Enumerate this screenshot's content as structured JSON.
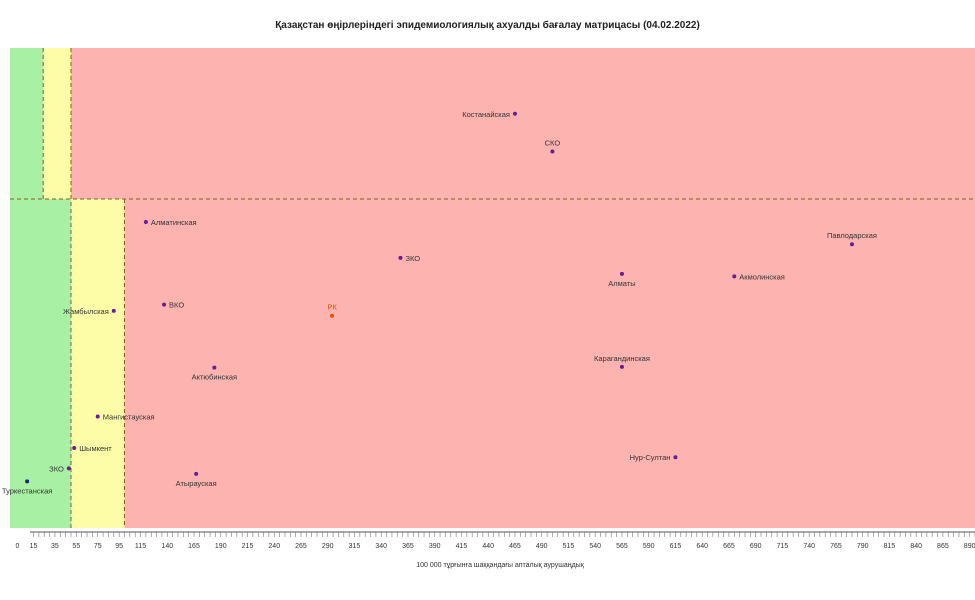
{
  "chart_data": {
    "type": "scatter",
    "title": "Қазақстан өңірлеріндегі эпидемиологиялық ахуалды бағалау матрицасы  (04.02.2022)",
    "xlabel": "100 000 тұрғынға шаққандағы апталық аурушаңдық",
    "ylabel": "",
    "xlim": [
      -7,
      895
    ],
    "x_ticks": [
      0,
      15,
      35,
      55,
      75,
      95,
      115,
      140,
      165,
      190,
      215,
      240,
      265,
      290,
      315,
      340,
      365,
      390,
      415,
      440,
      465,
      490,
      515,
      540,
      565,
      590,
      615,
      640,
      665,
      690,
      715,
      740,
      765,
      790,
      815,
      840,
      865,
      890
    ],
    "zones": [
      {
        "name": "green",
        "color": "#a8f0a4",
        "x_from": -7,
        "x_to": 24,
        "band": "top"
      },
      {
        "name": "yellow",
        "color": "#fdfda8",
        "x_from": 24,
        "x_to": 50,
        "band": "top"
      },
      {
        "name": "red",
        "color": "#fdb4b0",
        "x_from": 50,
        "x_to": 895,
        "band": "top"
      },
      {
        "name": "green",
        "color": "#a8f0a4",
        "x_from": -7,
        "x_to": 50,
        "band": "bottom"
      },
      {
        "name": "yellow",
        "color": "#fdfda8",
        "x_from": 50,
        "x_to": 100,
        "band": "bottom"
      },
      {
        "name": "red",
        "color": "#fdb4b0",
        "x_from": 100,
        "x_to": 895,
        "band": "bottom"
      }
    ],
    "points": [
      {
        "label": "Костанайская",
        "x": 465,
        "y": 0.785,
        "label_pos": "left",
        "color": "#6a1b9a"
      },
      {
        "label": "СКО",
        "x": 500,
        "y": 0.678,
        "label_pos": "above",
        "color": "#6a1b9a"
      },
      {
        "label": "Алматинская",
        "x": 120,
        "y": 0.565,
        "label_pos": "right",
        "color": "#6a1b9a"
      },
      {
        "label": "ЗКО",
        "x": 358,
        "y": 0.468,
        "label_pos": "right",
        "color": "#6a1b9a"
      },
      {
        "label": "Павлодарская",
        "x": 780,
        "y": 0.505,
        "label_pos": "above",
        "color": "#6a1b9a"
      },
      {
        "label": "Алматы",
        "x": 565,
        "y": 0.425,
        "label_pos": "below",
        "color": "#6a1b9a"
      },
      {
        "label": "Акмолинская",
        "x": 670,
        "y": 0.418,
        "label_pos": "right",
        "color": "#6a1b9a"
      },
      {
        "label": "ВКО",
        "x": 137,
        "y": 0.342,
        "label_pos": "right",
        "color": "#6a1b9a"
      },
      {
        "label": "Жамбылская",
        "x": 90,
        "y": 0.325,
        "label_pos": "left",
        "color": "#6a1b9a"
      },
      {
        "label": "РК",
        "x": 294,
        "y": 0.312,
        "label_pos": "above",
        "color": "#e65100"
      },
      {
        "label": "Карагандинская",
        "x": 565,
        "y": 0.174,
        "label_pos": "above",
        "color": "#6a1b9a"
      },
      {
        "label": "Актюбинская",
        "x": 184,
        "y": 0.172,
        "label_pos": "below",
        "color": "#6a1b9a"
      },
      {
        "label": "Мангистауская",
        "x": 75,
        "y": 0.04,
        "label_pos": "right",
        "color": "#6a1b9a"
      },
      {
        "label": "Шымкент",
        "x": 53,
        "y": -0.045,
        "label_pos": "right",
        "color": "#6a1b9a"
      },
      {
        "label": "ЗКО",
        "x": 48,
        "y": -0.1,
        "label_pos": "left",
        "color": "#6a1b9a"
      },
      {
        "label": "Нур-Султан",
        "x": 615,
        "y": -0.07,
        "label_pos": "left",
        "color": "#6a1b9a"
      },
      {
        "label": "Атырауская",
        "x": 167,
        "y": -0.115,
        "label_pos": "below",
        "color": "#6a1b9a"
      },
      {
        "label": "Туркестанская",
        "x": 9,
        "y": -0.135,
        "label_pos": "below",
        "color": "#1a237e"
      }
    ],
    "grid": false,
    "legend": "none"
  }
}
